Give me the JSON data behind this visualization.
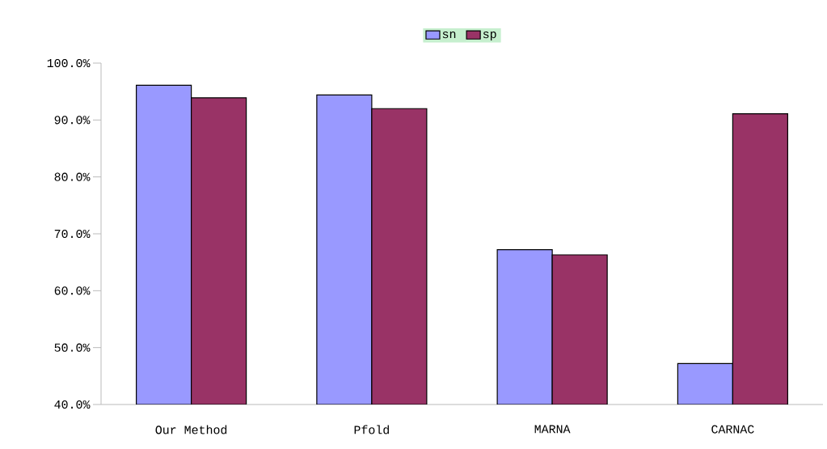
{
  "chart_data": {
    "type": "bar",
    "categories": [
      "Our Method",
      "Pfold",
      "MARNA",
      "CARNAC"
    ],
    "series": [
      {
        "name": "sn",
        "color": "#9999ff",
        "values": [
          96.1,
          94.4,
          67.2,
          47.2
        ]
      },
      {
        "name": "sp",
        "color": "#993366",
        "values": [
          93.9,
          92.0,
          66.3,
          91.1
        ]
      }
    ],
    "ylim": [
      40,
      100
    ],
    "yticks": [
      {
        "value": 40,
        "label": "40.0%"
      },
      {
        "value": 50,
        "label": "50.0%"
      },
      {
        "value": 60,
        "label": "60.0%"
      },
      {
        "value": 70,
        "label": "70.0%"
      },
      {
        "value": 80,
        "label": "80.0%"
      },
      {
        "value": 90,
        "label": "90.0%"
      },
      {
        "value": 100,
        "label": "100.0%"
      }
    ],
    "legend": "top",
    "grid": false
  }
}
